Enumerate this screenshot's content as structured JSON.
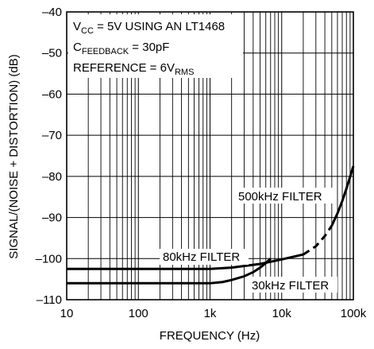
{
  "chart_data": {
    "type": "line",
    "xlabel": "FREQUENCY (Hz)",
    "ylabel": "SIGNAL/(NOISE + DISTORTION) (dB)",
    "x_scale": "log",
    "xlim": [
      10,
      100000
    ],
    "ylim": [
      -110,
      -40
    ],
    "x_ticks": [
      10,
      100,
      1000,
      10000,
      100000
    ],
    "x_tick_labels": [
      "10",
      "100",
      "1k",
      "10k",
      "100k"
    ],
    "y_ticks": [
      -40,
      -50,
      -60,
      -70,
      -80,
      -90,
      -100,
      -110
    ],
    "y_tick_labels": [
      "–40",
      "–50",
      "–60",
      "–70",
      "–80",
      "–90",
      "–100",
      "–110"
    ],
    "grid": true,
    "annotations": {
      "line1_main": "V",
      "line1_sub": "CC",
      "line1_rest": " = 5V USING AN LT1468",
      "line2_main": "C",
      "line2_sub": "FEEDBACK",
      "line2_rest": " = 30pF",
      "line3_main": "REFERENCE = 6V",
      "line3_sub": "RMS"
    },
    "series": [
      {
        "name": "500kHz FILTER",
        "x": [
          10,
          100,
          1000,
          2000,
          5000,
          10000,
          20000,
          30000,
          40000,
          50000,
          60000,
          70000,
          80000,
          100000
        ],
        "y": [
          -102.5,
          -102.5,
          -102.5,
          -102.2,
          -101.3,
          -100.2,
          -99,
          -97,
          -94.5,
          -92,
          -89,
          -86,
          -83,
          -77.5
        ],
        "dashed_x_range": [
          20000,
          50000
        ]
      },
      {
        "name": "80kHz FILTER",
        "x": [
          10,
          100,
          1000,
          2000,
          5000,
          10000,
          20000
        ],
        "y": [
          -102.5,
          -102.5,
          -102.5,
          -102.2,
          -101.3,
          -100.2,
          -99
        ]
      },
      {
        "name": "30kHz FILTER",
        "x": [
          10,
          100,
          1000,
          1500,
          2000,
          3000,
          4000,
          5000,
          6000,
          7000
        ],
        "y": [
          -106,
          -106,
          -106,
          -105.7,
          -105.2,
          -104.3,
          -103.3,
          -102.2,
          -101.1,
          -100
        ]
      }
    ],
    "series_labels": {
      "s500": "500kHz FILTER",
      "s80": "80kHz FILTER",
      "s30": "30kHz FILTER"
    }
  }
}
